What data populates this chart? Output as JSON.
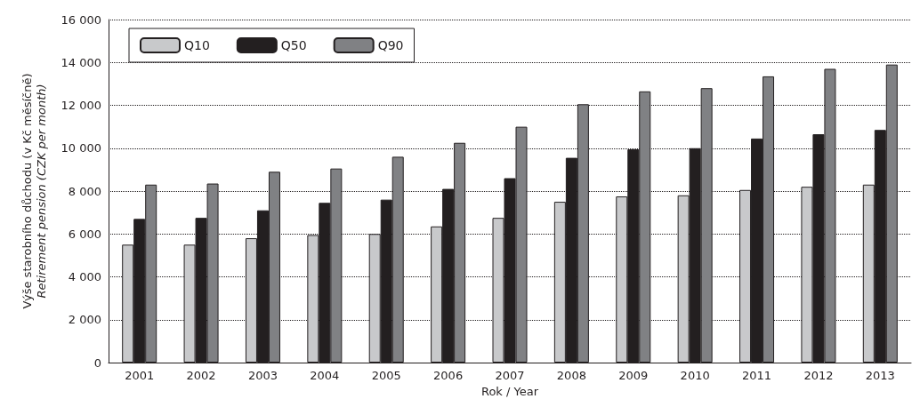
{
  "chart_data": {
    "type": "bar",
    "xlabel": "Rok / Year",
    "ylabel": "Výše starobního důchodu (v Kč měsíčně)\nRetirement pension (CZK per month)",
    "categories": [
      "2001",
      "2002",
      "2003",
      "2004",
      "2005",
      "2006",
      "2007",
      "2008",
      "2009",
      "2010",
      "2011",
      "2012",
      "2013"
    ],
    "series": [
      {
        "name": "Q10",
        "color": "#c8c9cb",
        "values": [
          5500,
          5500,
          5800,
          5950,
          6000,
          6350,
          6750,
          7500,
          7750,
          7800,
          8050,
          8200,
          8300
        ]
      },
      {
        "name": "Q50",
        "color": "#231f20",
        "values": [
          6700,
          6750,
          7100,
          7450,
          7600,
          8100,
          8600,
          9550,
          9950,
          10000,
          10450,
          10650,
          10850
        ]
      },
      {
        "name": "Q90",
        "color": "#808184",
        "values": [
          8300,
          8350,
          8900,
          9050,
          9600,
          10250,
          11000,
          12050,
          12650,
          12800,
          13350,
          13700,
          13900
        ]
      }
    ],
    "ylim": [
      0,
      16000
    ],
    "yticks": [
      0,
      {
        "value": 2000,
        "label": "2 000"
      },
      {
        "value": 4000,
        "label": "4 000"
      },
      {
        "value": 6000,
        "label": "6 000"
      },
      {
        "value": 8000,
        "label": "8 000"
      },
      {
        "value": 10000,
        "label": "10 000"
      },
      {
        "value": 12000,
        "label": "12 000"
      },
      {
        "value": 14000,
        "label": "14 000"
      },
      {
        "value": 16000,
        "label": "16 000"
      }
    ],
    "grid": "y",
    "legend": "top left"
  }
}
